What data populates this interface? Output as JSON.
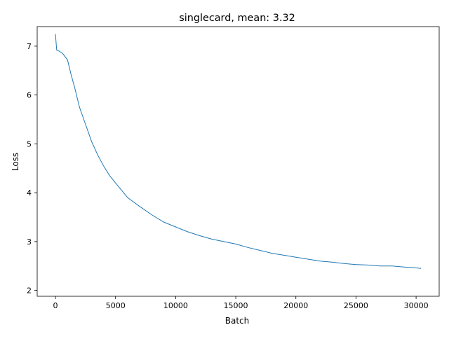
{
  "chart_data": {
    "type": "line",
    "title": "singlecard, mean: 3.32",
    "xlabel": "Batch",
    "ylabel": "Loss",
    "xlim": [
      -1520,
      31920
    ],
    "ylim": [
      1.88,
      7.4
    ],
    "grid": false,
    "legend": "none",
    "xticks": [
      0,
      5000,
      10000,
      15000,
      20000,
      25000,
      30000
    ],
    "xtick_labels": [
      "0",
      "5000",
      "10000",
      "15000",
      "20000",
      "25000",
      "30000"
    ],
    "yticks": [
      2,
      3,
      4,
      5,
      6,
      7
    ],
    "ytick_labels": [
      "2",
      "3",
      "4",
      "5",
      "6",
      "7"
    ],
    "color": "#1f77b4",
    "series": [
      {
        "x": [
          0,
          100,
          300,
          600,
          1000,
          1300,
          1600,
          2000,
          2500,
          3000,
          3500,
          4000,
          4500,
          5000,
          6000,
          7000,
          8000,
          9000,
          10000,
          11000,
          12000,
          13000,
          14000,
          15000,
          16000,
          17000,
          18000,
          19000,
          20000,
          21000,
          22000,
          23000,
          24000,
          25000,
          26000,
          27000,
          28000,
          29000,
          30000,
          30400
        ],
        "y": [
          7.25,
          6.92,
          6.9,
          6.85,
          6.72,
          6.42,
          6.15,
          5.75,
          5.4,
          5.05,
          4.78,
          4.55,
          4.35,
          4.2,
          3.9,
          3.72,
          3.55,
          3.4,
          3.3,
          3.2,
          3.12,
          3.05,
          3.0,
          2.95,
          2.88,
          2.82,
          2.76,
          2.72,
          2.68,
          2.64,
          2.6,
          2.58,
          2.55,
          2.53,
          2.52,
          2.5,
          2.5,
          2.48,
          2.46,
          2.45
        ]
      }
    ]
  }
}
